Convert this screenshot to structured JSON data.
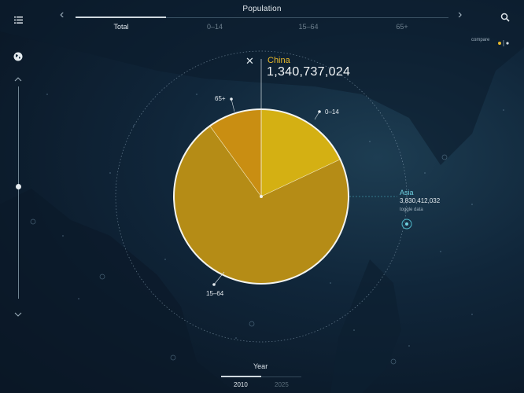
{
  "header": {
    "title": "Population",
    "tabs": [
      {
        "label": "Total",
        "active": true
      },
      {
        "label": "0–14",
        "active": false
      },
      {
        "label": "15–64",
        "active": false
      },
      {
        "label": "65+",
        "active": false
      }
    ]
  },
  "selection": {
    "country": "China",
    "population": "1,340,737,024",
    "slices": [
      {
        "label": "0–14",
        "fraction": 0.18,
        "color": "#d4b013"
      },
      {
        "label": "15–64",
        "fraction": 0.72,
        "color": "#b58c16"
      },
      {
        "label": "65+",
        "fraction": 0.1,
        "color": "#c98e12"
      }
    ]
  },
  "region": {
    "name": "Asia",
    "population": "3,830,412,032",
    "toggle_label": "toggle data"
  },
  "compare": {
    "label": "compare"
  },
  "timeline": {
    "label": "Year",
    "years": [
      {
        "label": "2010",
        "active": true
      },
      {
        "label": "2025",
        "active": false
      }
    ]
  },
  "icons": {
    "menu": "list-icon",
    "search": "search-icon",
    "globe": "globe-icon",
    "close": "close-icon"
  },
  "colors": {
    "accent_gold": "#e5b72b",
    "region_cyan": "#6fd0e0"
  }
}
